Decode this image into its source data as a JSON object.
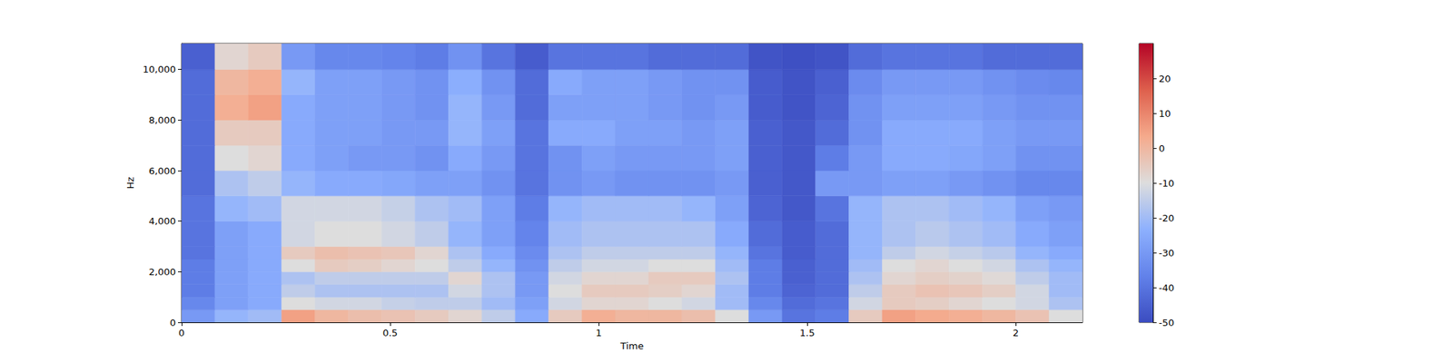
{
  "chart_data": {
    "type": "heatmap",
    "x_label": "Time",
    "y_label": "Hz",
    "xlim": [
      0,
      2.16
    ],
    "xticks": [
      0,
      0.5,
      1,
      1.5,
      2
    ],
    "ylim": [
      0,
      11025
    ],
    "yticks": [
      0,
      2000,
      4000,
      6000,
      8000,
      10000
    ],
    "x_edges": [
      0,
      0.08,
      0.16,
      0.24,
      0.32,
      0.4,
      0.48,
      0.56,
      0.64,
      0.72,
      0.8,
      0.88,
      0.96,
      1.04,
      1.12,
      1.2,
      1.28,
      1.36,
      1.44,
      1.52,
      1.6,
      1.68,
      1.76,
      1.84,
      1.92,
      2,
      2.08,
      2.16
    ],
    "y_edges": [
      0,
      500,
      1000,
      1500,
      2000,
      2500,
      3000,
      4000,
      5000,
      6000,
      7000,
      8000,
      9000,
      10000,
      11025
    ],
    "cells": [
      [
        -30,
        -22,
        -20,
        5,
        0,
        -2,
        -3,
        -5,
        -8,
        -15,
        -25,
        -5,
        2,
        0,
        0,
        -2,
        -10,
        -30,
        -40,
        -38,
        -5,
        5,
        3,
        2,
        0,
        -3,
        -10
      ],
      [
        -35,
        -28,
        -25,
        -10,
        -12,
        -12,
        -14,
        -15,
        -15,
        -20,
        -28,
        -12,
        -8,
        -8,
        -10,
        -12,
        -20,
        -35,
        -42,
        -40,
        -12,
        -5,
        -6,
        -8,
        -10,
        -12,
        -18
      ],
      [
        -38,
        -28,
        -25,
        -15,
        -18,
        -18,
        -18,
        -18,
        -12,
        -18,
        -30,
        -10,
        -5,
        -5,
        -6,
        -8,
        -20,
        -38,
        -44,
        -42,
        -15,
        -5,
        -3,
        -4,
        -6,
        -12,
        -20
      ],
      [
        -38,
        -28,
        -25,
        -18,
        -15,
        -15,
        -15,
        -15,
        -8,
        -18,
        -30,
        -12,
        -8,
        -8,
        -5,
        -5,
        -18,
        -38,
        -45,
        -42,
        -18,
        -8,
        -6,
        -7,
        -9,
        -15,
        -20
      ],
      [
        -38,
        -28,
        -25,
        -10,
        -5,
        -6,
        -8,
        -10,
        -15,
        -22,
        -32,
        -15,
        -12,
        -12,
        -10,
        -10,
        -20,
        -38,
        -45,
        -42,
        -20,
        -10,
        -8,
        -10,
        -12,
        -18,
        -22
      ],
      [
        -40,
        -28,
        -25,
        -5,
        -2,
        -3,
        -4,
        -8,
        -18,
        -25,
        -34,
        -18,
        -15,
        -15,
        -15,
        -15,
        -22,
        -40,
        -46,
        -42,
        -22,
        -15,
        -12,
        -14,
        -16,
        -22,
        -25
      ],
      [
        -40,
        -28,
        -25,
        -12,
        -10,
        -10,
        -12,
        -15,
        -22,
        -28,
        -36,
        -20,
        -18,
        -18,
        -18,
        -18,
        -25,
        -42,
        -46,
        -42,
        -22,
        -18,
        -16,
        -18,
        -20,
        -25,
        -28
      ],
      [
        -40,
        -22,
        -20,
        -12,
        -12,
        -12,
        -14,
        -18,
        -20,
        -28,
        -38,
        -22,
        -20,
        -20,
        -20,
        -22,
        -28,
        -44,
        -47,
        -40,
        -22,
        -18,
        -18,
        -20,
        -22,
        -28,
        -30
      ],
      [
        -42,
        -18,
        -15,
        -22,
        -25,
        -25,
        -26,
        -28,
        -28,
        -32,
        -40,
        -32,
        -30,
        -32,
        -32,
        -32,
        -30,
        -45,
        -47,
        -30,
        -30,
        -28,
        -28,
        -30,
        -32,
        -35,
        -35
      ],
      [
        -42,
        -10,
        -8,
        -25,
        -28,
        -30,
        -30,
        -32,
        -25,
        -30,
        -40,
        -32,
        -28,
        -30,
        -30,
        -30,
        -28,
        -45,
        -47,
        -38,
        -30,
        -25,
        -25,
        -26,
        -28,
        -32,
        -32
      ],
      [
        -42,
        -5,
        -5,
        -25,
        -28,
        -28,
        -30,
        -30,
        -22,
        -28,
        -40,
        -25,
        -25,
        -28,
        -28,
        -30,
        -28,
        -45,
        -47,
        -42,
        -32,
        -25,
        -25,
        -25,
        -28,
        -30,
        -30
      ],
      [
        -42,
        2,
        5,
        -25,
        -28,
        -28,
        -30,
        -32,
        -22,
        -30,
        -42,
        -28,
        -28,
        -28,
        -30,
        -32,
        -30,
        -46,
        -48,
        -44,
        -32,
        -28,
        -28,
        -28,
        -30,
        -32,
        -32
      ],
      [
        -42,
        0,
        2,
        -22,
        -28,
        -28,
        -30,
        -32,
        -24,
        -32,
        -42,
        -25,
        -28,
        -28,
        -30,
        -32,
        -32,
        -46,
        -48,
        -45,
        -34,
        -30,
        -30,
        -30,
        -32,
        -34,
        -35
      ],
      [
        -45,
        -8,
        -5,
        -30,
        -35,
        -35,
        -36,
        -38,
        -32,
        -40,
        -46,
        -40,
        -40,
        -40,
        -42,
        -42,
        -42,
        -48,
        -49,
        -48,
        -42,
        -40,
        -40,
        -40,
        -42,
        -42,
        -42
      ]
    ],
    "colorbar": {
      "range": [
        -50,
        30
      ],
      "ticks": [
        -50,
        -40,
        -30,
        -20,
        -10,
        0,
        10,
        20
      ]
    }
  }
}
